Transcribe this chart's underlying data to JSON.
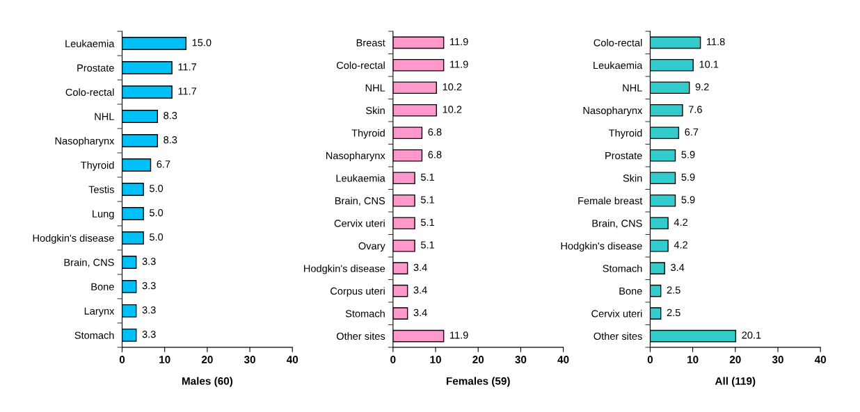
{
  "chart_data": [
    {
      "type": "bar",
      "orientation": "horizontal",
      "xlabel": "Males (60)",
      "categories": [
        "Leukaemia",
        "Prostate",
        "Colo-rectal",
        "NHL",
        "Nasopharynx",
        "Thyroid",
        "Testis",
        "Lung",
        "Hodgkin's disease",
        "Brain, CNS",
        "Bone",
        "Larynx",
        "Stomach"
      ],
      "values": [
        15.0,
        11.7,
        11.7,
        8.3,
        8.3,
        6.7,
        5.0,
        5.0,
        5.0,
        3.3,
        3.3,
        3.3,
        3.3
      ],
      "value_labels": [
        "15.0",
        "11.7",
        "11.7",
        "8.3",
        "8.3",
        "6.7",
        "5.0",
        "5.0",
        "5.0",
        "3.3",
        "3.3",
        "3.3",
        "3.3"
      ],
      "color": "#00c0f8",
      "xlim": [
        0,
        40
      ],
      "xticks": [
        0,
        10,
        20,
        30,
        40
      ]
    },
    {
      "type": "bar",
      "orientation": "horizontal",
      "xlabel": "Females (59)",
      "categories": [
        "Breast",
        "Colo-rectal",
        "NHL",
        "Skin",
        "Thyroid",
        "Nasopharynx",
        "Leukaemia",
        "Brain, CNS",
        "Cervix uteri",
        "Ovary",
        "Hodgkin's disease",
        "Corpus uteri",
        "Stomach",
        "Other sites"
      ],
      "values": [
        11.9,
        11.9,
        10.2,
        10.2,
        6.8,
        6.8,
        5.1,
        5.1,
        5.1,
        5.1,
        3.4,
        3.4,
        3.4,
        11.9
      ],
      "value_labels": [
        "11.9",
        "11.9",
        "10.2",
        "10.2",
        "6.8",
        "6.8",
        "5.1",
        "5.1",
        "5.1",
        "5.1",
        "3.4",
        "3.4",
        "3.4",
        "11.9"
      ],
      "color": "#ff99cc",
      "xlim": [
        0,
        40
      ],
      "xticks": [
        0,
        10,
        20,
        30,
        40
      ]
    },
    {
      "type": "bar",
      "orientation": "horizontal",
      "xlabel": "All (119)",
      "categories": [
        "Colo-rectal",
        "Leukaemia",
        "NHL",
        "Nasopharynx",
        "Thyroid",
        "Prostate",
        "Skin",
        "Female breast",
        "Brain, CNS",
        "Hodgkin's disease",
        "Stomach",
        "Bone",
        "Cervix uteri",
        "Other sites"
      ],
      "values": [
        11.8,
        10.1,
        9.2,
        7.6,
        6.7,
        5.9,
        5.9,
        5.9,
        4.2,
        4.2,
        3.4,
        2.5,
        2.5,
        20.1
      ],
      "value_labels": [
        "11.8",
        "10.1",
        "9.2",
        "7.6",
        "6.7",
        "5.9",
        "5.9",
        "5.9",
        "4.2",
        "4.2",
        "3.4",
        "2.5",
        "2.5",
        "20.1"
      ],
      "color": "#33cccc",
      "xlim": [
        0,
        40
      ],
      "xticks": [
        0,
        10,
        20,
        30,
        40
      ]
    }
  ]
}
